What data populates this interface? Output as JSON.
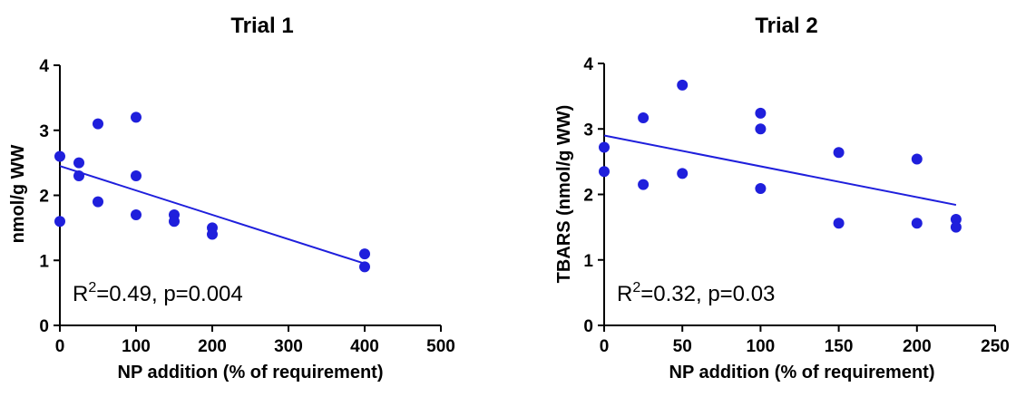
{
  "chart_data": [
    {
      "type": "scatter",
      "title": "Trial 1",
      "xlabel": "NP addition (% of requirement)",
      "ylabel": "nmol/g WW",
      "xlim": [
        0,
        500
      ],
      "ylim": [
        0,
        4
      ],
      "xticks": [
        0,
        100,
        200,
        300,
        400,
        500
      ],
      "yticks": [
        0,
        1,
        2,
        3,
        4
      ],
      "x_tick_labels": [
        "0",
        "100",
        "200",
        "300",
        "400",
        "500"
      ],
      "y_tick_labels": [
        "0",
        "1",
        "2",
        "3",
        "4"
      ],
      "grid": false,
      "marker_color": "#1f1fdc",
      "line_color": "#1f1fdc",
      "series": [
        {
          "points": [
            {
              "x": 0,
              "y": 2.6
            },
            {
              "x": 0,
              "y": 1.6
            },
            {
              "x": 25,
              "y": 2.5
            },
            {
              "x": 25,
              "y": 2.3
            },
            {
              "x": 50,
              "y": 3.1
            },
            {
              "x": 50,
              "y": 1.9
            },
            {
              "x": 100,
              "y": 3.2
            },
            {
              "x": 100,
              "y": 2.3
            },
            {
              "x": 100,
              "y": 1.7
            },
            {
              "x": 150,
              "y": 1.7
            },
            {
              "x": 150,
              "y": 1.6
            },
            {
              "x": 200,
              "y": 1.5
            },
            {
              "x": 200,
              "y": 1.4
            },
            {
              "x": 400,
              "y": 1.1
            },
            {
              "x": 400,
              "y": 0.9
            }
          ]
        }
      ],
      "regression_line": {
        "x": [
          0,
          400
        ],
        "y": [
          2.45,
          0.95
        ]
      },
      "annotation": {
        "prefix": "R",
        "superscript": "2",
        "suffix": "=0.49, p=0.004"
      }
    },
    {
      "type": "scatter",
      "title": "Trial 2",
      "xlabel": "NP addition (% of requirement)",
      "ylabel": "TBARS (nmol/g WW)",
      "xlim": [
        0,
        250
      ],
      "ylim": [
        0,
        4
      ],
      "xticks": [
        0,
        50,
        100,
        150,
        200,
        250
      ],
      "yticks": [
        0,
        1,
        2,
        3,
        4
      ],
      "x_tick_labels": [
        "0",
        "50",
        "100",
        "150",
        "200",
        "250"
      ],
      "y_tick_labels": [
        "0",
        "1",
        "2",
        "3",
        "4"
      ],
      "grid": false,
      "marker_color": "#1f1fdc",
      "line_color": "#1f1fdc",
      "series": [
        {
          "points": [
            {
              "x": 0,
              "y": 2.72
            },
            {
              "x": 0,
              "y": 2.35
            },
            {
              "x": 25,
              "y": 3.17
            },
            {
              "x": 25,
              "y": 2.15
            },
            {
              "x": 50,
              "y": 3.67
            },
            {
              "x": 50,
              "y": 2.32
            },
            {
              "x": 100,
              "y": 3.24
            },
            {
              "x": 100,
              "y": 3.0
            },
            {
              "x": 100,
              "y": 2.09
            },
            {
              "x": 150,
              "y": 2.64
            },
            {
              "x": 150,
              "y": 1.56
            },
            {
              "x": 200,
              "y": 2.54
            },
            {
              "x": 200,
              "y": 1.56
            },
            {
              "x": 225,
              "y": 1.62
            },
            {
              "x": 225,
              "y": 1.5
            }
          ]
        }
      ],
      "regression_line": {
        "x": [
          0,
          225
        ],
        "y": [
          2.9,
          1.84
        ]
      },
      "annotation": {
        "prefix": "R",
        "superscript": "2",
        "suffix": "=0.32, p=0.03"
      }
    }
  ]
}
